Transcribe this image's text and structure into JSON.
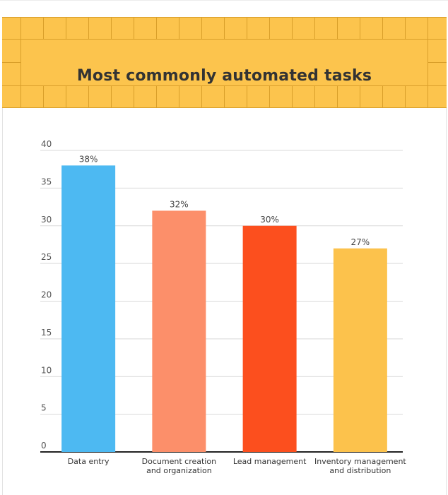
{
  "colors": {
    "banner_bg": "#fcc44d",
    "banner_lines": "#d99f2a",
    "title": "#333333",
    "grid": "#d9d9d9",
    "axis": "#222222"
  },
  "chart_data": {
    "type": "bar",
    "title": "Most commonly automated tasks",
    "categories": [
      [
        "Data entry"
      ],
      [
        "Document creation",
        "and organization"
      ],
      [
        "Lead management"
      ],
      [
        "Inventory management",
        "and distribution"
      ]
    ],
    "values": [
      38,
      32,
      30,
      27
    ],
    "data_labels": [
      "38%",
      "32%",
      "30%",
      "27%"
    ],
    "bar_colors": [
      "#4db9f2",
      "#fc8f6a",
      "#fc4f1e",
      "#fcc24c"
    ],
    "ylim": [
      0,
      40
    ],
    "yticks": [
      0,
      5,
      10,
      15,
      20,
      25,
      30,
      35,
      40
    ],
    "grid": true,
    "xlabel": "",
    "ylabel": ""
  }
}
